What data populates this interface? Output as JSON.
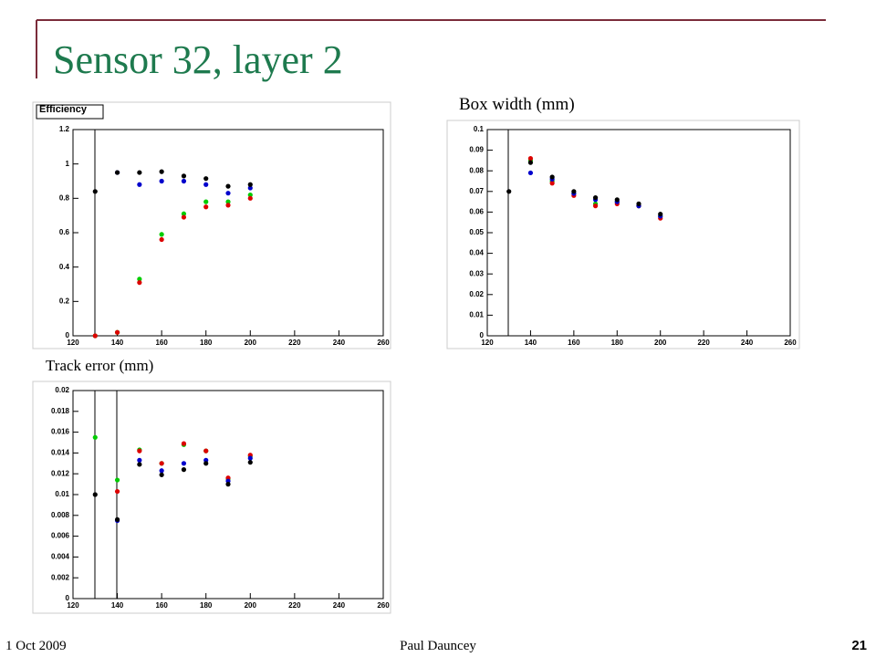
{
  "slide": {
    "title": "Sensor 32, layer 2",
    "date": "1 Oct 2009",
    "author": "Paul Dauncey",
    "page": "21"
  },
  "chart_data": [
    {
      "type": "scatter",
      "title": "Efficiency",
      "x": [
        130,
        140,
        150,
        160,
        170,
        180,
        190,
        200
      ],
      "xlim": [
        120,
        260
      ],
      "xticks": [
        120,
        140,
        160,
        180,
        200,
        220,
        240,
        260
      ],
      "ylim": [
        0,
        1.2
      ],
      "yticks": [
        0,
        0.2,
        0.4,
        0.6,
        0.8,
        1,
        1.2
      ],
      "series": [
        {
          "color": "#00cc00",
          "values": [
            0,
            0.02,
            0.33,
            0.59,
            0.71,
            0.78,
            0.78,
            0.82
          ]
        },
        {
          "color": "#dd0000",
          "values": [
            0,
            0.02,
            0.31,
            0.56,
            0.69,
            0.75,
            0.76,
            0.8
          ]
        },
        {
          "color": "#0000cc",
          "values": [
            null,
            0.95,
            0.88,
            0.9,
            0.9,
            0.88,
            0.83,
            0.86
          ]
        },
        {
          "color": "#000000",
          "values": [
            0.84,
            0.95,
            0.95,
            0.955,
            0.93,
            0.915,
            0.87,
            0.88
          ]
        }
      ]
    },
    {
      "type": "scatter",
      "title": "Box width (mm)",
      "x": [
        130,
        140,
        150,
        160,
        170,
        180,
        190,
        200
      ],
      "xlim": [
        120,
        260
      ],
      "xticks": [
        120,
        140,
        160,
        180,
        200,
        220,
        240,
        260
      ],
      "ylim": [
        0,
        0.1
      ],
      "yticks": [
        0,
        0.01,
        0.02,
        0.03,
        0.04,
        0.05,
        0.06,
        0.07,
        0.08,
        0.09,
        0.1
      ],
      "series": [
        {
          "color": "#00cc00",
          "values": [
            null,
            0.085,
            0.075,
            0.069,
            0.064,
            0.065,
            0.063,
            0.058
          ]
        },
        {
          "color": "#dd0000",
          "values": [
            null,
            0.086,
            0.074,
            0.068,
            0.063,
            0.064,
            0.063,
            0.057
          ]
        },
        {
          "color": "#0000cc",
          "values": [
            null,
            0.079,
            0.076,
            0.069,
            0.066,
            0.065,
            0.063,
            0.058
          ]
        },
        {
          "color": "#000000",
          "values": [
            0.07,
            0.084,
            0.077,
            0.07,
            0.067,
            0.066,
            0.064,
            0.059
          ]
        }
      ]
    },
    {
      "type": "scatter",
      "title": "Track error (mm)",
      "x": [
        130,
        140,
        150,
        160,
        170,
        180,
        190,
        200
      ],
      "xlim": [
        120,
        260
      ],
      "xticks": [
        120,
        140,
        160,
        180,
        200,
        220,
        240,
        260
      ],
      "ylim": [
        0,
        0.02
      ],
      "yticks": [
        0,
        0.002,
        0.004,
        0.006,
        0.008,
        0.01,
        0.012,
        0.014,
        0.016,
        0.018,
        0.02
      ],
      "series": [
        {
          "color": "#00cc00",
          "values": [
            0.0155,
            0.0114,
            0.0143,
            0.013,
            0.0148,
            0.0142,
            0.0115,
            0.0137
          ]
        },
        {
          "color": "#dd0000",
          "values": [
            null,
            0.0103,
            0.0142,
            0.013,
            0.0149,
            0.0142,
            0.0116,
            0.0138
          ]
        },
        {
          "color": "#0000cc",
          "values": [
            null,
            0.0075,
            0.0133,
            0.0123,
            0.013,
            0.0133,
            0.0113,
            0.0135
          ]
        },
        {
          "color": "#000000",
          "values": [
            0.01,
            0.0076,
            0.0129,
            0.0119,
            0.0124,
            0.013,
            0.011,
            0.0131
          ]
        }
      ]
    }
  ]
}
